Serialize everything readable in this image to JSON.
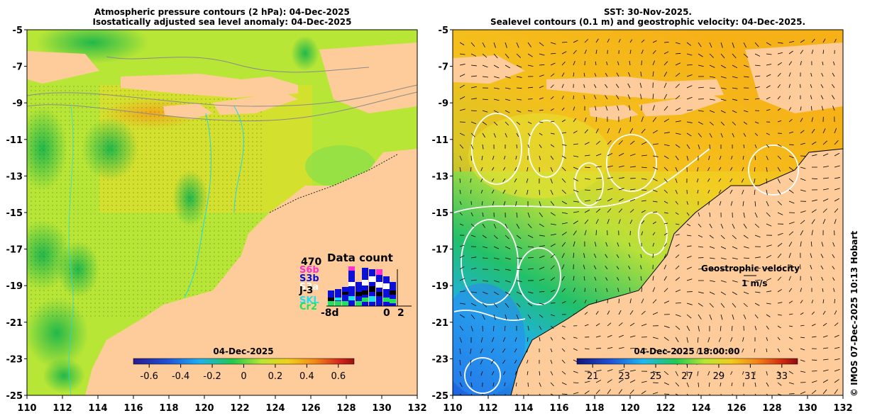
{
  "left_panel": {
    "title_line1": "Atmospheric pressure contours (2 hPa): 04-Dec-2025",
    "title_line2": "Isostatically adjusted sea level anomaly: 04-Dec-2025",
    "colorbar_date": "04-Dec-2025",
    "colorbar_ticks": [
      "-0.6",
      "-0.4",
      "-0.2",
      "0",
      "0.2",
      "0.4",
      "0.6"
    ],
    "colorbar_colors": [
      "#2b1a8c",
      "#1f4fd6",
      "#1fb0f0",
      "#22c94b",
      "#b8e632",
      "#f2d01a",
      "#f28a1a",
      "#d62a1a",
      "#9c1010"
    ]
  },
  "right_panel": {
    "title_line1": "SST: 30-Nov-2025.",
    "title_line2": "Sealevel contours (0.1 m) and geostrophic velocity: 04-Dec-2025.",
    "colorbar_date": "04-Dec-2025 18:00:00",
    "colorbar_ticks": [
      "21",
      "23",
      "25",
      "27",
      "29",
      "31",
      "33"
    ],
    "colorbar_colors": [
      "#12167a",
      "#1f50d6",
      "#1fb8f0",
      "#22c950",
      "#b8e632",
      "#f2cc1a",
      "#f2801a",
      "#d02a10",
      "#8c0c0c"
    ],
    "velocity_label": "Geostrophic velocity",
    "velocity_scale": "1 m/s"
  },
  "axes": {
    "x_ticks": [
      "110",
      "112",
      "114",
      "116",
      "118",
      "120",
      "122",
      "124",
      "126",
      "128",
      "130",
      "132"
    ],
    "y_ticks": [
      "-5",
      "-7",
      "-9",
      "-11",
      "-13",
      "-15",
      "-17",
      "-19",
      "-21",
      "-23",
      "-25"
    ]
  },
  "data_count": {
    "max_label": "470",
    "title": "Data count",
    "satellites": [
      {
        "name": "S6b",
        "color": "#ff2fd0"
      },
      {
        "name": "S3b",
        "color": "#0a10d8"
      },
      {
        "name": "S3a",
        "color": "#ffffff"
      },
      {
        "name": "J-3",
        "color": "#000000"
      },
      {
        "name": "SKL",
        "color": "#1fe0f0"
      },
      {
        "name": "Cr2",
        "color": "#22e060"
      }
    ],
    "x_start": "-8d",
    "x_zero": "0",
    "x_end": "2"
  },
  "credit": "© IMOS 07-Dec-2025 10:13 Hobart",
  "colors": {
    "land": "#fdcc9a",
    "ocean_green": "#9be33a",
    "ocean_yellow": "#f2de2a",
    "ocean_orange": "#f5b01c"
  }
}
